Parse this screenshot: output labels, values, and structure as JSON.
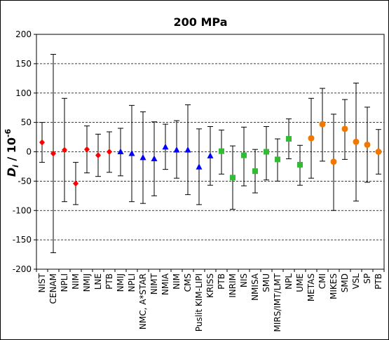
{
  "chart_data": {
    "type": "scatter",
    "title": "200 MPa",
    "ylabel": "D_i / 10^-6",
    "ylabel_parts": {
      "main": "D",
      "subscript": "i",
      "rest": " / 10",
      "superscript": "-6"
    },
    "ylim": [
      -200,
      200
    ],
    "yticks": [
      -200,
      -150,
      -100,
      -50,
      0,
      50,
      100,
      150,
      200
    ],
    "grid": "horizontal dashed",
    "error_bars": true,
    "categories": [
      "NIST",
      "CENAM",
      "NPLI",
      "NIM",
      "NMIJ",
      "LNE",
      "PTB",
      "NMIJ",
      "NPLI",
      "NMC, A*STAR",
      "NIMT",
      "NMIA",
      "NIM",
      "CMS",
      "Puslit KIM-LIPI",
      "KRISS",
      "PTB",
      "INRIM",
      "NIS",
      "NMISA",
      "SMU",
      "MIRS/IMT/LMT",
      "NPL",
      "UME",
      "METAS",
      "CMI",
      "MIKES",
      "SMD",
      "VSL",
      "SP",
      "PTB"
    ],
    "series": [
      {
        "marker": "diamond",
        "color": "#ff0000",
        "points": [
          {
            "category": "NIST",
            "value": 16,
            "low": -18,
            "high": 50
          },
          {
            "category": "CENAM",
            "value": -3,
            "low": -172,
            "high": 166
          },
          {
            "category": "NPLI",
            "value": 3,
            "low": -85,
            "high": 91
          },
          {
            "category": "NIM",
            "value": -54,
            "low": -90,
            "high": -18
          },
          {
            "category": "NMIJ",
            "value": 4,
            "low": -36,
            "high": 44
          },
          {
            "category": "LNE",
            "value": -6,
            "low": -42,
            "high": 30
          },
          {
            "category": "PTB",
            "value": 0,
            "low": -35,
            "high": 34
          }
        ]
      },
      {
        "marker": "triangle",
        "color": "#0000ff",
        "points": [
          {
            "category": "NMIJ",
            "value": 0,
            "low": -41,
            "high": 40
          },
          {
            "category": "NPLI",
            "value": -3,
            "low": -85,
            "high": 79
          },
          {
            "category": "NMC, A*STAR",
            "value": -10,
            "low": -88,
            "high": 68
          },
          {
            "category": "NIMT",
            "value": -12,
            "low": -75,
            "high": 51
          },
          {
            "category": "NMIA",
            "value": 8,
            "low": -30,
            "high": 47
          },
          {
            "category": "NIM",
            "value": 3,
            "low": -45,
            "high": 53
          },
          {
            "category": "CMS",
            "value": 3,
            "low": -73,
            "high": 80
          },
          {
            "category": "Puslit KIM-LIPI",
            "value": -26,
            "low": -90,
            "high": 39
          },
          {
            "category": "KRISS",
            "value": -7,
            "low": -57,
            "high": 43
          }
        ]
      },
      {
        "marker": "square",
        "color": "#33bb33",
        "points": [
          {
            "category": "PTB",
            "value": 1,
            "low": -38,
            "high": 37
          },
          {
            "category": "INRIM",
            "value": -44,
            "low": -98,
            "high": 10
          },
          {
            "category": "NIS",
            "value": -6,
            "low": -58,
            "high": 42
          },
          {
            "category": "NMISA",
            "value": -33,
            "low": -70,
            "high": 4
          },
          {
            "category": "SMU",
            "value": 0,
            "low": -48,
            "high": 43
          },
          {
            "category": "MIRS/IMT/LMT",
            "value": -13,
            "low": -50,
            "high": 22
          },
          {
            "category": "NPL",
            "value": 22,
            "low": -12,
            "high": 56
          },
          {
            "category": "UME",
            "value": -22,
            "low": -57,
            "high": 11
          }
        ]
      },
      {
        "marker": "circle",
        "color": "#f07800",
        "points": [
          {
            "category": "METAS",
            "value": 23,
            "low": -45,
            "high": 91
          },
          {
            "category": "CMI",
            "value": 47,
            "low": -16,
            "high": 108
          },
          {
            "category": "MIKES",
            "value": -17,
            "low": -100,
            "high": 64
          },
          {
            "category": "SMD",
            "value": 39,
            "low": -13,
            "high": 89
          },
          {
            "category": "VSL",
            "value": 17,
            "low": -84,
            "high": 117
          },
          {
            "category": "SP",
            "value": 12,
            "low": -52,
            "high": 76
          },
          {
            "category": "PTB",
            "value": 0,
            "low": -38,
            "high": 38
          }
        ]
      }
    ]
  }
}
